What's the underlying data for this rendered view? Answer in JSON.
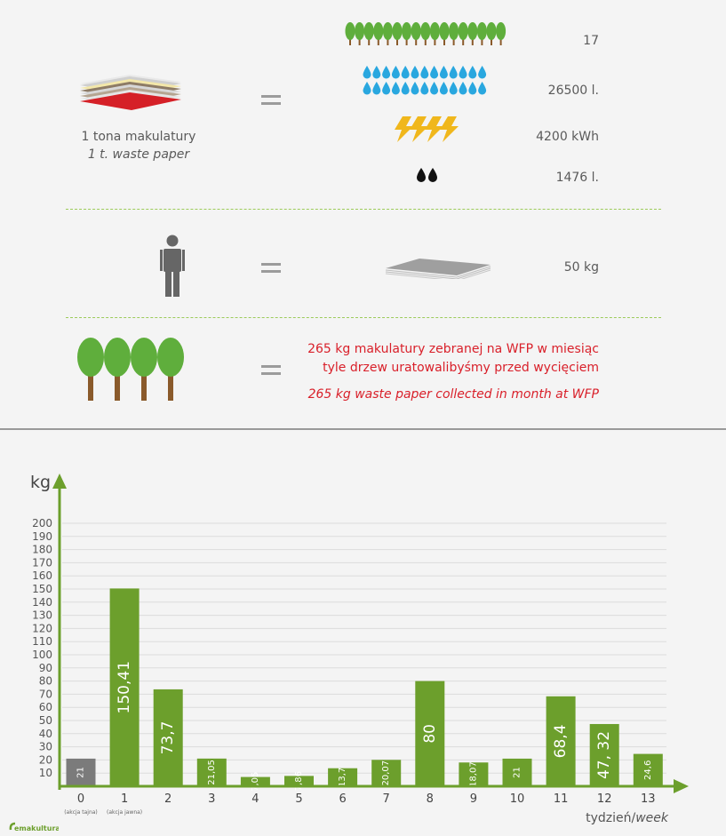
{
  "colors": {
    "green": "#6c9f2c",
    "gray_bar": "#7b7b7b",
    "red_text": "#d9202a",
    "tree_crown": "#5fae3c",
    "water": "#29a7df",
    "lightning": "#f0b71c"
  },
  "equivalence": {
    "paper_caption_pl": "1 tona makulatury",
    "paper_caption_en": "1 t. waste paper",
    "trees_value": "17",
    "water_value": "26500 l.",
    "energy_value": "4200 kWh",
    "oil_value": "1476 l.",
    "person_value": "50 kg",
    "wfp_line1": "265 kg makulatury zebranej na WFP w miesiąc",
    "wfp_line2": "tyle drzew uratowalibyśmy przed wycięciem",
    "wfp_line3_en": "265 kg waste paper collected in month at WFP"
  },
  "icons": {
    "paper_stack": "paper-stack-icon",
    "tree_row": "tree-icon",
    "water_drops": "water-drop-icon",
    "lightning": "lightning-icon",
    "oil_drops": "oil-drop-icon",
    "person": "person-icon",
    "paper_sheets": "paper-sheets-icon",
    "big_trees": "tree-icon"
  },
  "logo_text": "emakultura",
  "chart_data": {
    "type": "bar",
    "ylabel": "kg",
    "xlabel_pl": "tydzień/",
    "xlabel_en": "week",
    "ylim": [
      0,
      200
    ],
    "yticks": [
      10,
      20,
      30,
      40,
      50,
      60,
      70,
      80,
      90,
      100,
      110,
      120,
      130,
      140,
      150,
      160,
      170,
      180,
      190,
      200
    ],
    "categories": [
      "0",
      "1",
      "2",
      "3",
      "4",
      "5",
      "6",
      "7",
      "8",
      "9",
      "10",
      "11",
      "12",
      "13"
    ],
    "values": [
      21,
      150.41,
      73.7,
      21.05,
      7.05,
      7.86,
      13.7,
      20.07,
      80,
      18.07,
      21,
      68.4,
      47.32,
      24.6
    ],
    "value_labels": [
      "21",
      "150,41",
      "73,7",
      "21,05",
      "7,05",
      "7,86",
      "13,7",
      "20,07",
      "80",
      "18,07",
      "21",
      "68,4",
      "47, 32",
      "24,6"
    ],
    "sub_labels": {
      "0": "(akcja tajna)",
      "1": "(akcja jawna)"
    },
    "grid": true
  }
}
